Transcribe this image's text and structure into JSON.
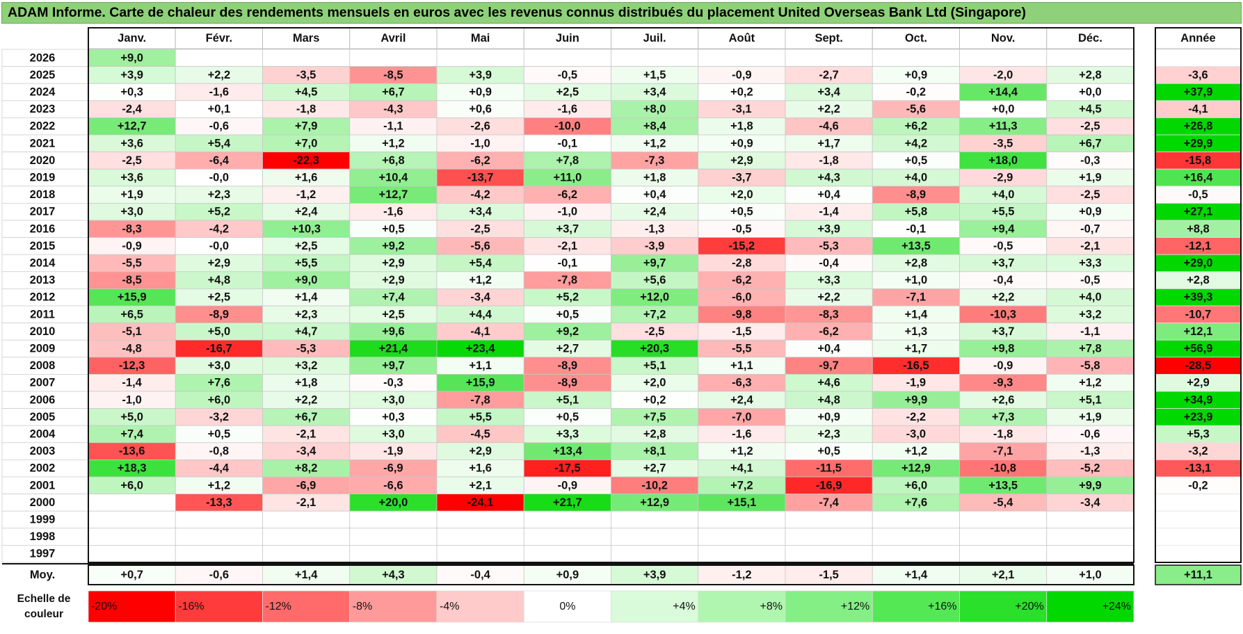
{
  "title": "ADAM Informe. Carte de chaleur des rendements mensuels en euros avec les revenus connus distribués du placement United Overseas Bank Ltd (Singapore)",
  "chart_data": {
    "type": "heatmap",
    "columns": [
      "Janv.",
      "Févr.",
      "Mars",
      "Avril",
      "Mai",
      "Juin",
      "Juil.",
      "Août",
      "Sept.",
      "Oct.",
      "Nov.",
      "Déc."
    ],
    "year_header": "Année",
    "rows": [
      {
        "year": "2026",
        "values": [
          9.0,
          null,
          null,
          null,
          null,
          null,
          null,
          null,
          null,
          null,
          null,
          null
        ],
        "annual": null
      },
      {
        "year": "2025",
        "values": [
          3.9,
          2.2,
          -3.5,
          -8.5,
          3.9,
          -0.5,
          1.5,
          -0.9,
          -2.7,
          0.9,
          -2.0,
          2.8
        ],
        "annual": -3.6
      },
      {
        "year": "2024",
        "values": [
          0.3,
          -1.6,
          4.5,
          6.7,
          0.9,
          2.5,
          3.4,
          0.2,
          3.4,
          -0.2,
          14.4,
          0.0
        ],
        "annual": 37.9
      },
      {
        "year": "2023",
        "values": [
          -2.4,
          0.1,
          -1.8,
          -4.3,
          0.6,
          -1.6,
          8.0,
          -3.1,
          2.2,
          -5.6,
          0.0,
          4.5
        ],
        "annual": -4.1
      },
      {
        "year": "2022",
        "values": [
          12.7,
          -0.6,
          7.9,
          -1.1,
          -2.6,
          -10.0,
          8.4,
          1.8,
          -4.6,
          6.2,
          11.3,
          -2.5
        ],
        "annual": 26.8
      },
      {
        "year": "2021",
        "values": [
          3.6,
          5.4,
          7.0,
          1.2,
          -1.0,
          -0.1,
          1.2,
          0.9,
          1.7,
          4.2,
          -3.5,
          6.7
        ],
        "annual": 29.9
      },
      {
        "year": "2020",
        "values": [
          -2.5,
          -6.4,
          -22.3,
          6.8,
          -6.2,
          7.8,
          -7.3,
          2.9,
          -1.8,
          0.5,
          18.0,
          -0.3
        ],
        "annual": -15.8
      },
      {
        "year": "2019",
        "values": [
          3.6,
          -0.0,
          1.6,
          10.4,
          -13.7,
          11.0,
          1.8,
          -3.7,
          4.3,
          4.0,
          -2.9,
          1.9
        ],
        "annual": 16.4
      },
      {
        "year": "2018",
        "values": [
          1.9,
          2.3,
          -1.2,
          12.7,
          -4.2,
          -6.2,
          0.4,
          2.0,
          0.4,
          -8.9,
          4.0,
          -2.5
        ],
        "annual": -0.5
      },
      {
        "year": "2017",
        "values": [
          3.0,
          5.2,
          2.4,
          -1.6,
          3.4,
          -1.0,
          2.4,
          0.5,
          -1.4,
          5.8,
          5.5,
          0.9
        ],
        "annual": 27.1
      },
      {
        "year": "2016",
        "values": [
          -8.3,
          -4.2,
          10.3,
          0.5,
          -2.5,
          3.7,
          -1.3,
          -0.5,
          3.9,
          -0.1,
          9.4,
          -0.7
        ],
        "annual": 8.8
      },
      {
        "year": "2015",
        "values": [
          -0.9,
          -0.0,
          2.5,
          9.2,
          -5.6,
          -2.1,
          -3.9,
          -15.2,
          -5.3,
          13.5,
          -0.5,
          -2.1
        ],
        "annual": -12.1
      },
      {
        "year": "2014",
        "values": [
          -5.5,
          2.9,
          5.5,
          2.9,
          5.4,
          -0.1,
          9.7,
          -2.8,
          -0.4,
          2.8,
          3.7,
          3.3
        ],
        "annual": 29.0
      },
      {
        "year": "2013",
        "values": [
          -8.5,
          4.8,
          9.0,
          2.9,
          1.2,
          -7.8,
          5.6,
          -6.2,
          3.3,
          1.0,
          -0.4,
          -0.5
        ],
        "annual": 2.8
      },
      {
        "year": "2012",
        "values": [
          15.9,
          2.5,
          1.4,
          7.4,
          -3.4,
          5.2,
          12.0,
          -6.0,
          2.2,
          -7.1,
          2.2,
          4.0
        ],
        "annual": 39.3
      },
      {
        "year": "2011",
        "values": [
          6.5,
          -8.9,
          2.3,
          2.5,
          4.4,
          0.5,
          7.2,
          -9.8,
          -8.3,
          1.4,
          -10.3,
          3.2
        ],
        "annual": -10.7
      },
      {
        "year": "2010",
        "values": [
          -5.1,
          5.0,
          4.7,
          9.6,
          -4.1,
          9.2,
          -2.5,
          -1.5,
          -6.2,
          1.3,
          3.7,
          -1.1
        ],
        "annual": 12.1
      },
      {
        "year": "2009",
        "values": [
          -4.8,
          -16.7,
          -5.3,
          21.4,
          23.4,
          2.7,
          20.3,
          -5.5,
          0.4,
          1.7,
          9.8,
          7.8
        ],
        "annual": 56.9
      },
      {
        "year": "2008",
        "values": [
          -12.3,
          3.0,
          3.2,
          9.7,
          1.1,
          -8.9,
          5.1,
          1.1,
          -9.7,
          -16.5,
          -0.9,
          -5.8
        ],
        "annual": -28.5
      },
      {
        "year": "2007",
        "values": [
          -1.4,
          7.6,
          1.8,
          -0.3,
          15.9,
          -8.9,
          2.0,
          -6.3,
          4.6,
          -1.9,
          -9.3,
          1.2
        ],
        "annual": 2.9
      },
      {
        "year": "2006",
        "values": [
          -1.0,
          6.0,
          2.2,
          3.0,
          -7.8,
          5.1,
          0.2,
          2.4,
          4.8,
          9.9,
          2.6,
          5.1
        ],
        "annual": 34.9
      },
      {
        "year": "2005",
        "values": [
          5.0,
          -3.2,
          6.7,
          0.3,
          5.5,
          0.5,
          7.5,
          -7.0,
          0.9,
          -2.2,
          7.3,
          1.9
        ],
        "annual": 23.9
      },
      {
        "year": "2004",
        "values": [
          7.4,
          0.5,
          -2.1,
          3.0,
          -4.5,
          3.3,
          2.8,
          -1.6,
          2.3,
          -3.0,
          -1.8,
          -0.6
        ],
        "annual": 5.3
      },
      {
        "year": "2003",
        "values": [
          -13.6,
          -0.8,
          -3.4,
          -1.9,
          2.9,
          13.4,
          8.1,
          1.2,
          0.5,
          1.2,
          -7.1,
          -1.3
        ],
        "annual": -3.2
      },
      {
        "year": "2002",
        "values": [
          18.3,
          -4.4,
          8.2,
          -6.9,
          1.6,
          -17.5,
          2.7,
          4.1,
          -11.5,
          12.9,
          -10.8,
          -5.2
        ],
        "annual": -13.1
      },
      {
        "year": "2001",
        "values": [
          6.0,
          1.2,
          -6.9,
          -6.6,
          2.1,
          -0.9,
          -10.2,
          7.2,
          -16.9,
          6.0,
          13.5,
          9.9
        ],
        "annual": -0.2
      },
      {
        "year": "2000",
        "values": [
          null,
          -13.3,
          -2.1,
          20.0,
          -24.1,
          21.7,
          12.9,
          15.1,
          -7.4,
          7.6,
          -5.4,
          -3.4
        ],
        "annual": null
      },
      {
        "year": "1999",
        "values": [
          null,
          null,
          null,
          null,
          null,
          null,
          null,
          null,
          null,
          null,
          null,
          null
        ],
        "annual": null
      },
      {
        "year": "1998",
        "values": [
          null,
          null,
          null,
          null,
          null,
          null,
          null,
          null,
          null,
          null,
          null,
          null
        ],
        "annual": null
      },
      {
        "year": "1997",
        "values": [
          null,
          null,
          null,
          null,
          null,
          null,
          null,
          null,
          null,
          null,
          null,
          null
        ],
        "annual": null
      }
    ],
    "average": {
      "label": "Moy.",
      "values": [
        0.7,
        -0.6,
        1.4,
        4.3,
        -0.4,
        0.9,
        3.9,
        -1.2,
        -1.5,
        1.4,
        2.1,
        1.0
      ],
      "annual": 11.1
    },
    "scale": {
      "label": "Echelle de couleur",
      "ticks": [
        {
          "label": "-20%",
          "value": -20,
          "color": "#ff0000",
          "align": "left"
        },
        {
          "label": "-16%",
          "value": -16,
          "color": "#ff3b3b",
          "align": "left"
        },
        {
          "label": "-12%",
          "value": -12,
          "color": "#ff6a6a",
          "align": "left"
        },
        {
          "label": "-8%",
          "value": -8,
          "color": "#ff9a9a",
          "align": "left"
        },
        {
          "label": "-4%",
          "value": -4,
          "color": "#ffcaca",
          "align": "left"
        },
        {
          "label": "0%",
          "value": 0,
          "color": "#ffffff",
          "align": "center"
        },
        {
          "label": "+4%",
          "value": 4,
          "color": "#d9fbd9",
          "align": "right"
        },
        {
          "label": "+8%",
          "value": 8,
          "color": "#b0f5b0",
          "align": "right"
        },
        {
          "label": "+12%",
          "value": 12,
          "color": "#84ef84",
          "align": "right"
        },
        {
          "label": "+16%",
          "value": 16,
          "color": "#55e855",
          "align": "right"
        },
        {
          "label": "+20%",
          "value": 20,
          "color": "#2ae02a",
          "align": "right"
        },
        {
          "label": "+24%",
          "value": 24,
          "color": "#00d800",
          "align": "right"
        }
      ]
    },
    "colors": {
      "negative_max": "#ff0000",
      "zero": "#ffffff",
      "positive_max": "#00d800"
    }
  }
}
